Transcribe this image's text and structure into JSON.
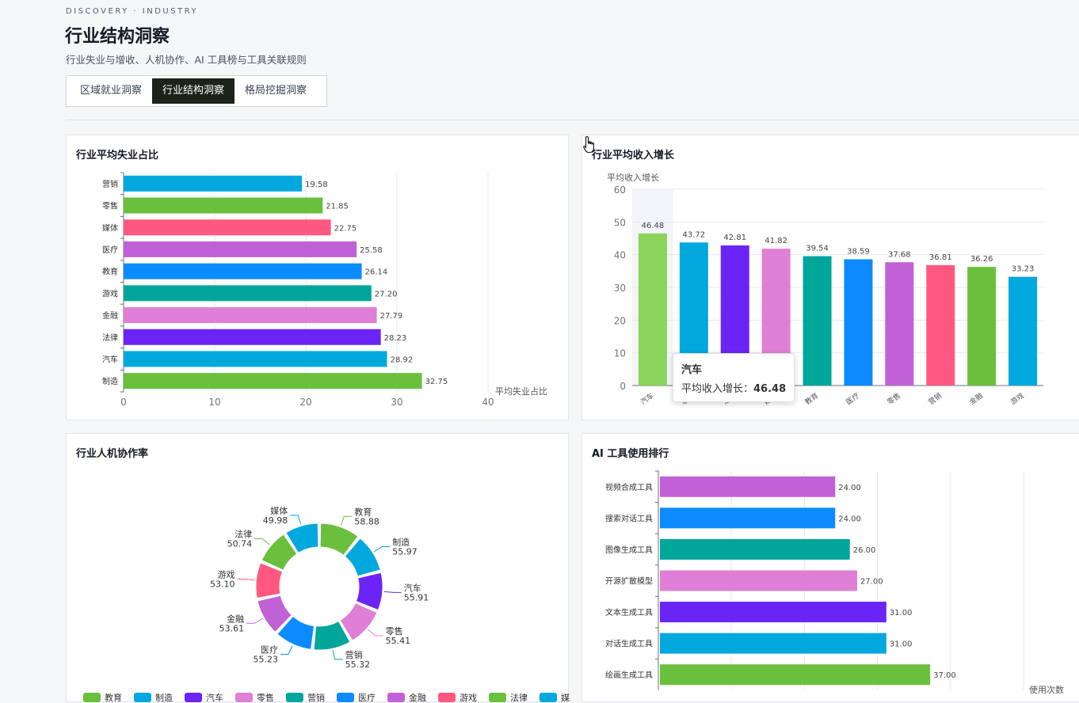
{
  "header": {
    "eyebrow": "DISCOVERY · INDUSTRY",
    "title": "行业结构洞察",
    "subtitle": "行业失业与增收、人机协作、AI 工具榜与工具关联规则"
  },
  "tabs": [
    {
      "label": "区域就业洞察",
      "active": false
    },
    {
      "label": "行业结构洞察",
      "active": true
    },
    {
      "label": "格局挖掘洞察",
      "active": false
    }
  ],
  "colors": [
    "#6abf3c",
    "#00a8de",
    "#6a24f5",
    "#df7fd5",
    "#00a69a",
    "#0c8bff",
    "#c062d6",
    "#ff5880"
  ],
  "unemployment": {
    "title": "行业平均失业占比",
    "chart_data": {
      "type": "bar",
      "orientation": "horizontal",
      "categories": [
        "营销",
        "零售",
        "媒体",
        "医疗",
        "教育",
        "游戏",
        "金融",
        "法律",
        "汽车",
        "制造"
      ],
      "values": [
        19.58,
        21.85,
        22.75,
        25.58,
        26.14,
        27.2,
        27.79,
        28.23,
        28.92,
        32.75
      ],
      "bar_colors": [
        "#00a8de",
        "#6abf3c",
        "#ff5880",
        "#c062d6",
        "#0c8bff",
        "#00a69a",
        "#df7fd5",
        "#6a24f5",
        "#00a8de",
        "#6abf3c"
      ],
      "xlabel": "平均失业占比",
      "xlim": [
        0,
        40
      ],
      "xticks": [
        0,
        10,
        20,
        30,
        40
      ],
      "grid": true
    }
  },
  "income": {
    "title": "行业平均收入增长",
    "chart_data": {
      "type": "bar",
      "categories": [
        "汽车",
        "制造",
        "法律",
        "媒体",
        "教育",
        "医疗",
        "零售",
        "营销",
        "金融",
        "游戏"
      ],
      "values": [
        46.48,
        43.72,
        42.81,
        41.82,
        39.54,
        38.59,
        37.68,
        36.81,
        36.26,
        33.23
      ],
      "bar_colors": [
        "#8bd35c",
        "#00a8de",
        "#6a24f5",
        "#df7fd5",
        "#00a69a",
        "#0c8bff",
        "#c062d6",
        "#ff5880",
        "#6abf3c",
        "#00a8de"
      ],
      "ylabel": "平均收入增长",
      "ylim": [
        0,
        60
      ],
      "yticks": [
        0,
        10,
        20,
        30,
        40,
        50,
        60
      ],
      "grid": true,
      "highlighted": "汽车"
    },
    "tooltip": {
      "title": "汽车",
      "label": "平均收入增长：",
      "value": "46.48"
    }
  },
  "collab": {
    "title": "行业人机协作率",
    "chart_data": {
      "type": "pie",
      "variant": "donut",
      "labels": [
        "教育",
        "制造",
        "汽车",
        "零售",
        "营销",
        "医疗",
        "金融",
        "游戏",
        "法律",
        "媒体"
      ],
      "values": [
        58.88,
        55.97,
        55.91,
        55.41,
        55.32,
        55.23,
        53.61,
        53.1,
        50.74,
        49.98
      ],
      "display_values": [
        "58.88",
        "55.97",
        "55.91",
        "55.41",
        "55.32",
        "55.23",
        "53.61",
        "53.10",
        "50.74",
        "49.98"
      ],
      "slice_colors": [
        "#6abf3c",
        "#00a8de",
        "#6a24f5",
        "#df7fd5",
        "#00a69a",
        "#0c8bff",
        "#c062d6",
        "#ff5880",
        "#6abf3c",
        "#00a8de"
      ],
      "legend_placement": "bottom"
    }
  },
  "tools": {
    "title": "AI 工具使用排行",
    "chart_data": {
      "type": "bar",
      "orientation": "horizontal",
      "categories": [
        "视频合成工具",
        "搜索对话工具",
        "图像生成工具",
        "开源扩散模型",
        "文本生成工具",
        "对话生成工具",
        "绘画生成工具"
      ],
      "values": [
        24.0,
        24.0,
        26.0,
        27.0,
        31.0,
        31.0,
        37.0
      ],
      "bar_colors": [
        "#c062d6",
        "#0c8bff",
        "#00a69a",
        "#df7fd5",
        "#6a24f5",
        "#00a8de",
        "#6abf3c"
      ],
      "xlabel": "使用次数",
      "xlim": [
        0,
        50
      ],
      "grid": true
    }
  }
}
